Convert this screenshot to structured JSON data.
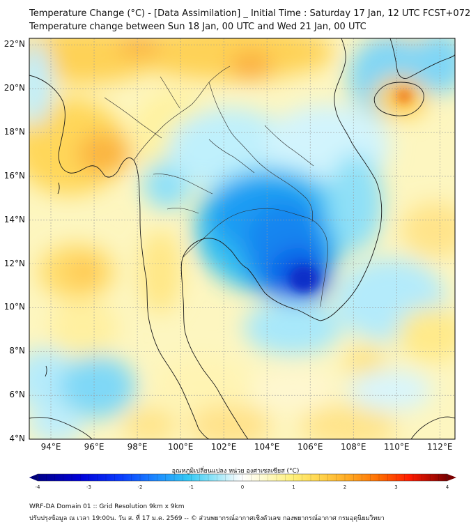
{
  "header": {
    "title_line1": "Temperature Change (°C) - [Data Assimilation] _ Initial Time : Saturday 17 Jan, 12 UTC FCST+072",
    "title_line2": "Temperature change between Sun 18 Jan, 00 UTC and Wed 21 Jan, 00 UTC"
  },
  "map": {
    "lat_labels": [
      "22°N",
      "20°N",
      "18°N",
      "16°N",
      "14°N",
      "12°N",
      "10°N",
      "8°N",
      "6°N",
      "4°N"
    ],
    "lon_labels": [
      "94°E",
      "96°E",
      "98°E",
      "100°E",
      "102°E",
      "104°E",
      "106°E",
      "108°E",
      "110°E",
      "112°E"
    ],
    "lat_values": [
      22,
      20,
      18,
      16,
      14,
      12,
      10,
      8,
      6,
      4
    ],
    "lon_values": [
      94,
      96,
      98,
      100,
      102,
      104,
      106,
      108,
      110,
      112
    ],
    "lat_range": [
      4,
      22.3
    ],
    "lon_range": [
      93,
      112.7
    ]
  },
  "colorbar": {
    "label": "อุณหภูมิเปลี่ยนแปลง หน่วย องศาเซลเซียส (°C)",
    "ticks": [
      "-4",
      "-3",
      "-2",
      "-1",
      "0",
      "1",
      "2",
      "3",
      "4"
    ],
    "range": [
      -4,
      4
    ],
    "colors": [
      "#00007a",
      "#0000d8",
      "#0a3cff",
      "#1e90ff",
      "#33c8f5",
      "#8fe4f8",
      "#e6f8fd",
      "#ffffff",
      "#fffbd0",
      "#fff07a",
      "#ffd24a",
      "#ffa520",
      "#ff6a00",
      "#ff1a00",
      "#c80000",
      "#7a0000"
    ]
  },
  "footer": {
    "line1": "WRF-DA Domain 01 :: Grid Resolution 9km x 9km",
    "line2": "ปรับปรุงข้อมูล ณ เวลา 19:00น. วัน ส. ที่ 17 ม.ค. 2569 -- © ส่วนพยากรณ์อากาศเชิงตัวเลข กองพยากรณ์อากาศ กรมอุตุนิยมวิทยา"
  },
  "colors": {
    "frame": "#000000",
    "coast": "#1a1a1a",
    "grid": "#9a9a9a"
  }
}
